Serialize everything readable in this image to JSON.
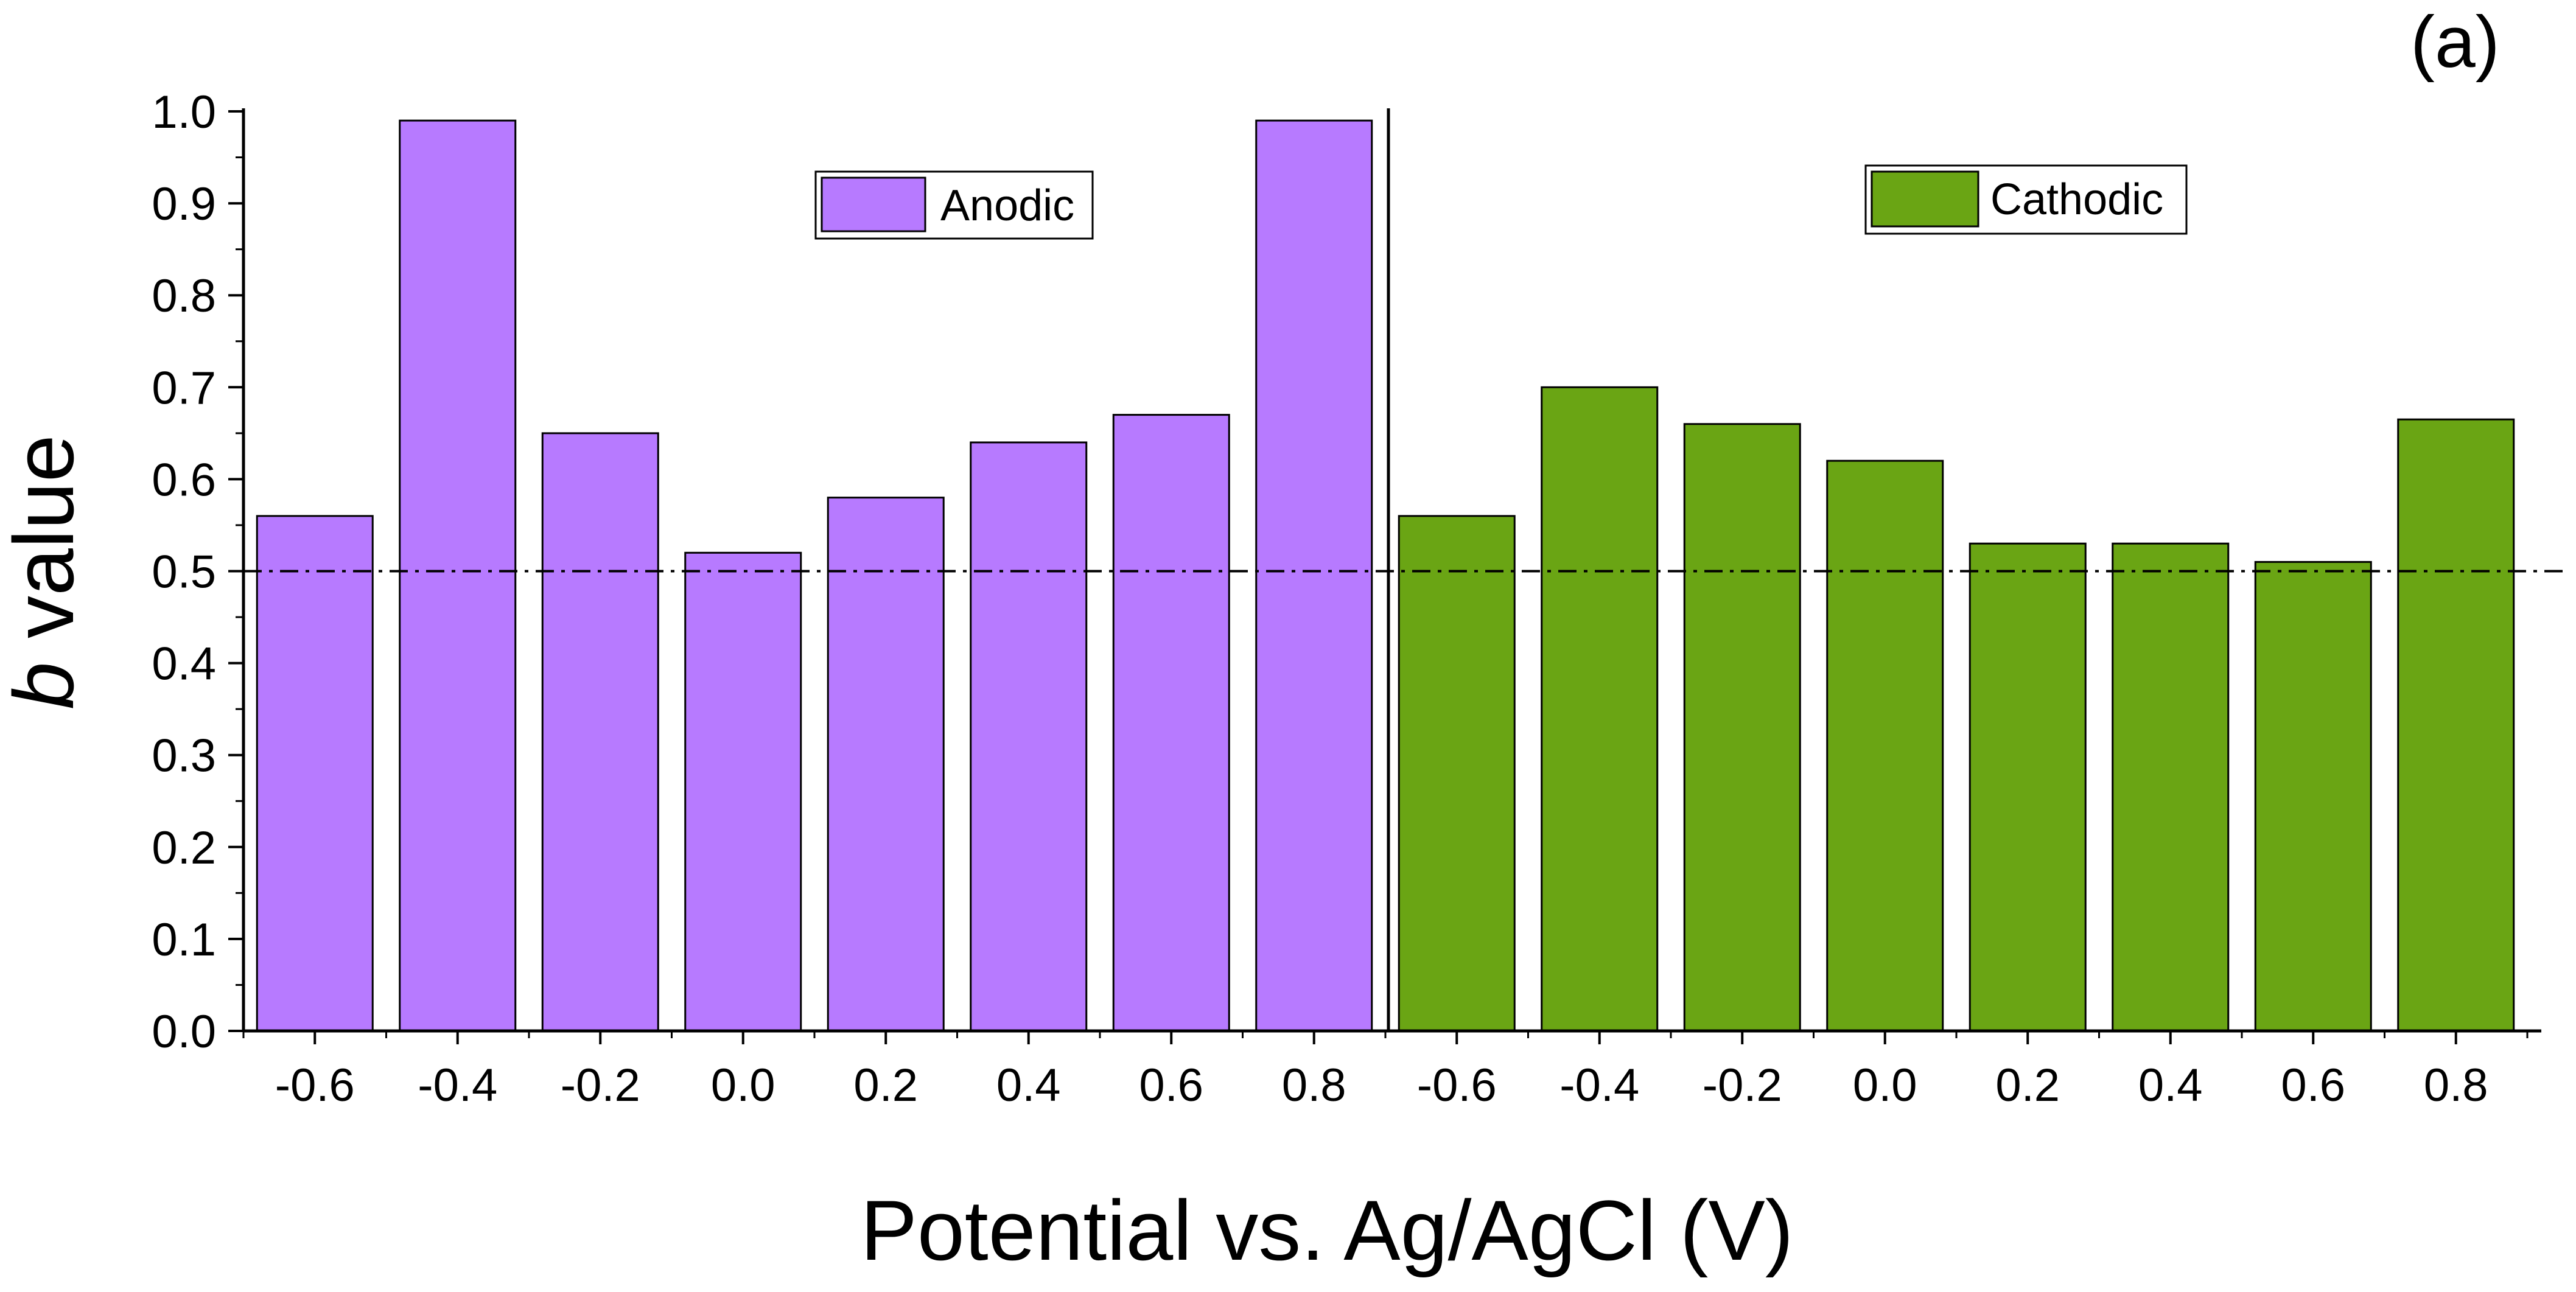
{
  "chart_data": {
    "type": "bar",
    "panel_label": "(a)",
    "xlabel": "Potential vs. Ag/AgCl (V)",
    "ylabel_italic": "b",
    "ylabel_rest": " value",
    "ylim": [
      0,
      1.0
    ],
    "yticks": [
      "0.0",
      "0.1",
      "0.2",
      "0.3",
      "0.4",
      "0.5",
      "0.6",
      "0.7",
      "0.8",
      "0.9",
      "1.0"
    ],
    "reference_line": 0.5,
    "series": [
      {
        "name": "Anodic",
        "color": "#b77aff",
        "categories": [
          "-0.6",
          "-0.4",
          "-0.2",
          "0.0",
          "0.2",
          "0.4",
          "0.6",
          "0.8"
        ],
        "values": [
          0.56,
          0.99,
          0.65,
          0.52,
          0.58,
          0.64,
          0.67,
          0.99
        ]
      },
      {
        "name": "Cathodic",
        "color": "#6aa514",
        "categories": [
          "-0.6",
          "-0.4",
          "-0.2",
          "0.0",
          "0.2",
          "0.4",
          "0.6",
          "0.8"
        ],
        "values": [
          0.56,
          0.7,
          0.66,
          0.62,
          0.53,
          0.53,
          0.51,
          0.665
        ]
      }
    ],
    "legend_anodic": "Anodic",
    "legend_cathodic": "Cathodic"
  }
}
